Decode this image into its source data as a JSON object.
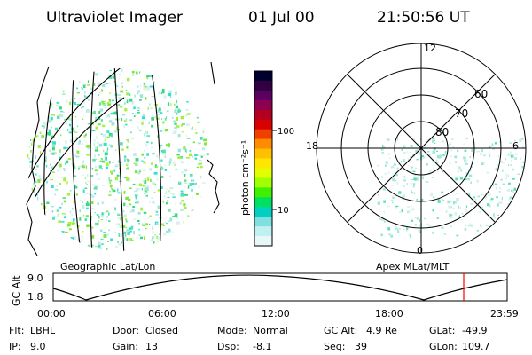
{
  "header": {
    "instrument": "Ultraviolet Imager",
    "date": "01 Jul 00",
    "time": "21:50:56 UT"
  },
  "panels": {
    "left_label": "Geographic Lat/Lon",
    "right_label": "Apex MLat/MLT"
  },
  "colorbar": {
    "unit_label": "photon cm⁻²s⁻¹",
    "tick_top": "100",
    "tick_bottom": "10",
    "colors": [
      "#000030",
      "#300040",
      "#5a0060",
      "#8c0050",
      "#b40020",
      "#d80000",
      "#f04000",
      "#ff8c00",
      "#ffc000",
      "#ffe600",
      "#e0ff00",
      "#a0ff00",
      "#40f000",
      "#00e060",
      "#00d0c0",
      "#80e0e0",
      "#c0f0f0",
      "#e8f8f8"
    ]
  },
  "polar": {
    "mlt_labels": {
      "top": "12",
      "left": "18",
      "right": "6",
      "bottom": "0"
    },
    "lat_labels": [
      "60",
      "70",
      "80"
    ]
  },
  "altitude_plot": {
    "ylabel": "GC Alt",
    "y_ticks": [
      "9.0",
      "1.8"
    ],
    "x_ticks": [
      "00:00",
      "06:00",
      "12:00",
      "18:00",
      "23:59"
    ],
    "marker_color": "#ff0000"
  },
  "status": {
    "row1": [
      {
        "key": "Flt:",
        "val": "LBHL"
      },
      {
        "key": "Door:",
        "val": "Closed"
      },
      {
        "key": "Mode:",
        "val": "Normal"
      },
      {
        "key": "GC Alt:",
        "val": "4.9 Re"
      },
      {
        "key": "GLat:",
        "val": "-49.9"
      }
    ],
    "row2": [
      {
        "key": "IP:",
        "val": "9.0"
      },
      {
        "key": "Gain:",
        "val": "13"
      },
      {
        "key": "Dsp:",
        "val": "-8.1"
      },
      {
        "key": "Seq:",
        "val": "39"
      },
      {
        "key": "GLon:",
        "val": "109.7"
      }
    ]
  }
}
